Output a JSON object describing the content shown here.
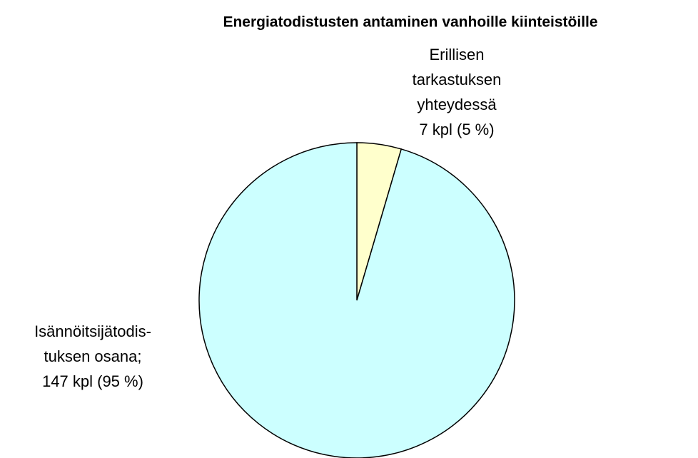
{
  "chart_data": {
    "type": "pie",
    "title": "Energiatodistusten antaminen vanhoille kiinteistöille",
    "categories": [
      [
        "Erillisen",
        "tarkastuksen",
        "yhteydessä"
      ],
      [
        "Isännöitsijätodis-",
        "tuksen osana;"
      ]
    ],
    "values": [
      7,
      147
    ],
    "value_labels": [
      "7 kpl (5 %)",
      "147 kpl (95 %)"
    ],
    "colors": [
      "#ffffcc",
      "#ccffff"
    ],
    "start_angle": 0,
    "direction": "clockwise"
  }
}
